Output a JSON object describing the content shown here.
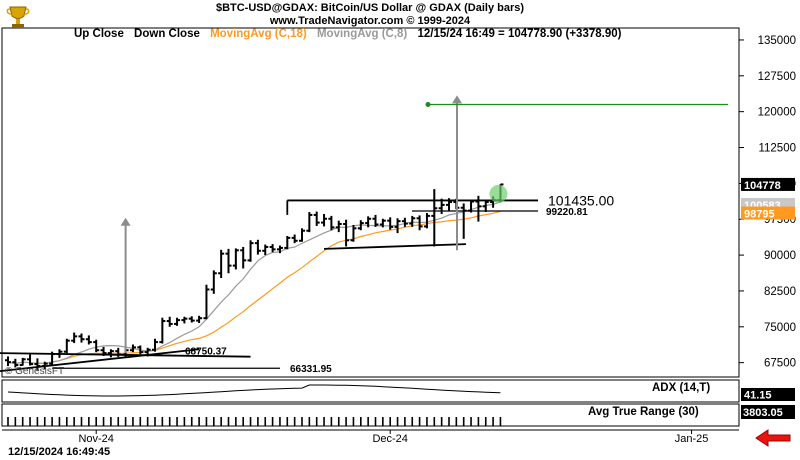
{
  "header": {
    "title": "$BTC-USD@GDAX:  BitCoin/US Dollar @ GDAX  (Daily bars)",
    "copyright": "www.TradeNavigator.com © 1999-2024"
  },
  "legend": {
    "up_close": "Up Close",
    "down_close": "Down Close",
    "ma18": "MovingAvg (C,18)",
    "ma8": "MovingAvg (C,8)",
    "quote": "12/15/24 16:49 = 104778.90 (+3378.90)",
    "ma18_color": "#ff9a1f",
    "ma8_color": "#9a9a9a"
  },
  "watermark": "© GenesisFT",
  "datetime": "12/15/2024 16:49:45",
  "panels": {
    "adx_label": "ADX (14,T)",
    "adx_value": "41.15",
    "atr_label": "Avg True Range (30)",
    "atr_value": "3803.05"
  },
  "chart_data": {
    "type": "bar",
    "title": "$BTC-USD@GDAX: BitCoin/US Dollar @ GDAX (Daily bars)",
    "x_ticks": [
      "Nov-24",
      "Dec-24",
      "Jan-25"
    ],
    "y_ticks": [
      67500,
      75000,
      82500,
      90000,
      97500,
      105000,
      112500,
      120000,
      127500,
      135000
    ],
    "ylim": [
      64500,
      137500
    ],
    "price_badges": [
      {
        "label": "104778",
        "value": 104778,
        "color": "#000000",
        "text_color": "#ffffff"
      },
      {
        "label": "100583",
        "value": 100583,
        "color": "#c8c8c8",
        "text_color": "#ffffff"
      },
      {
        "label": "98795",
        "value": 98795,
        "color": "#ff9a1f",
        "text_color": "#ffffff"
      }
    ],
    "levels": [
      {
        "label": "101435.00",
        "value": 101435
      },
      {
        "label": "99220.81",
        "value": 99220.81
      },
      {
        "label": "68750.37",
        "value": 68750.37
      },
      {
        "label": "66331.95",
        "value": 66331.95
      }
    ],
    "target_value": 121500,
    "bars": [
      {
        "o": 68000,
        "h": 68800,
        "l": 66800,
        "c": 67600
      },
      {
        "o": 67600,
        "h": 68300,
        "l": 66500,
        "c": 67000
      },
      {
        "o": 67000,
        "h": 68500,
        "l": 66900,
        "c": 68200
      },
      {
        "o": 68200,
        "h": 69200,
        "l": 66900,
        "c": 67200
      },
      {
        "o": 67200,
        "h": 68400,
        "l": 65900,
        "c": 66800
      },
      {
        "o": 66800,
        "h": 67700,
        "l": 66100,
        "c": 67300
      },
      {
        "o": 67300,
        "h": 69800,
        "l": 67000,
        "c": 69300
      },
      {
        "o": 69300,
        "h": 70300,
        "l": 68500,
        "c": 69800
      },
      {
        "o": 69800,
        "h": 72500,
        "l": 69500,
        "c": 72100
      },
      {
        "o": 72100,
        "h": 73800,
        "l": 71600,
        "c": 73000
      },
      {
        "o": 73000,
        "h": 73600,
        "l": 71700,
        "c": 72400
      },
      {
        "o": 72400,
        "h": 73200,
        "l": 71300,
        "c": 71800
      },
      {
        "o": 71800,
        "h": 72300,
        "l": 69700,
        "c": 70100
      },
      {
        "o": 70100,
        "h": 70800,
        "l": 68900,
        "c": 69500
      },
      {
        "o": 69500,
        "h": 70300,
        "l": 68600,
        "c": 69900
      },
      {
        "o": 69900,
        "h": 70600,
        "l": 68700,
        "c": 69200
      },
      {
        "o": 69200,
        "h": 70500,
        "l": 68800,
        "c": 70100
      },
      {
        "o": 70100,
        "h": 71300,
        "l": 69700,
        "c": 70700
      },
      {
        "o": 70700,
        "h": 71100,
        "l": 69300,
        "c": 69700
      },
      {
        "o": 69700,
        "h": 70600,
        "l": 68800,
        "c": 70200
      },
      {
        "o": 70200,
        "h": 72500,
        "l": 69800,
        "c": 71800
      },
      {
        "o": 71800,
        "h": 76900,
        "l": 71500,
        "c": 76200
      },
      {
        "o": 76200,
        "h": 77100,
        "l": 75000,
        "c": 75600
      },
      {
        "o": 75600,
        "h": 76900,
        "l": 75200,
        "c": 76400
      },
      {
        "o": 76400,
        "h": 77100,
        "l": 75700,
        "c": 76700
      },
      {
        "o": 76700,
        "h": 77200,
        "l": 75900,
        "c": 76300
      },
      {
        "o": 76300,
        "h": 77300,
        "l": 75800,
        "c": 76800
      },
      {
        "o": 76800,
        "h": 83800,
        "l": 76600,
        "c": 82800
      },
      {
        "o": 82800,
        "h": 86800,
        "l": 81900,
        "c": 86200
      },
      {
        "o": 86200,
        "h": 91100,
        "l": 85200,
        "c": 90300
      },
      {
        "o": 90300,
        "h": 91300,
        "l": 86200,
        "c": 87800
      },
      {
        "o": 87800,
        "h": 91400,
        "l": 87000,
        "c": 91000
      },
      {
        "o": 91000,
        "h": 91700,
        "l": 87200,
        "c": 88900
      },
      {
        "o": 88900,
        "h": 93100,
        "l": 88600,
        "c": 92500
      },
      {
        "o": 92500,
        "h": 93200,
        "l": 90100,
        "c": 90900
      },
      {
        "o": 90900,
        "h": 92200,
        "l": 90000,
        "c": 91700
      },
      {
        "o": 91700,
        "h": 92300,
        "l": 90600,
        "c": 91200
      },
      {
        "o": 91200,
        "h": 92000,
        "l": 90400,
        "c": 91500
      },
      {
        "o": 91500,
        "h": 94000,
        "l": 91200,
        "c": 93600
      },
      {
        "o": 93600,
        "h": 94300,
        "l": 92500,
        "c": 93000
      },
      {
        "o": 93000,
        "h": 95600,
        "l": 92800,
        "c": 95100
      },
      {
        "o": 95100,
        "h": 99000,
        "l": 94800,
        "c": 98400
      },
      {
        "o": 98400,
        "h": 99100,
        "l": 96100,
        "c": 96800
      },
      {
        "o": 96800,
        "h": 98600,
        "l": 96000,
        "c": 97600
      },
      {
        "o": 97600,
        "h": 98200,
        "l": 95200,
        "c": 95800
      },
      {
        "o": 95800,
        "h": 97200,
        "l": 94800,
        "c": 96500
      },
      {
        "o": 96500,
        "h": 97400,
        "l": 91800,
        "c": 93100
      },
      {
        "o": 93100,
        "h": 96300,
        "l": 92800,
        "c": 95600
      },
      {
        "o": 95600,
        "h": 97300,
        "l": 95200,
        "c": 96700
      },
      {
        "o": 96700,
        "h": 98100,
        "l": 95800,
        "c": 97600
      },
      {
        "o": 97600,
        "h": 98400,
        "l": 95900,
        "c": 96400
      },
      {
        "o": 96400,
        "h": 97600,
        "l": 95800,
        "c": 97200
      },
      {
        "o": 97200,
        "h": 97900,
        "l": 95300,
        "c": 95900
      },
      {
        "o": 95900,
        "h": 97700,
        "l": 94600,
        "c": 97100
      },
      {
        "o": 97100,
        "h": 97800,
        "l": 95900,
        "c": 96600
      },
      {
        "o": 96600,
        "h": 98200,
        "l": 95900,
        "c": 97700
      },
      {
        "o": 97700,
        "h": 98300,
        "l": 95200,
        "c": 96000
      },
      {
        "o": 96000,
        "h": 98800,
        "l": 95600,
        "c": 98200
      },
      {
        "o": 98200,
        "h": 103800,
        "l": 91800,
        "c": 99800
      },
      {
        "o": 99800,
        "h": 101800,
        "l": 98600,
        "c": 100500
      },
      {
        "o": 100500,
        "h": 101900,
        "l": 99200,
        "c": 101100
      },
      {
        "o": 101100,
        "h": 101800,
        "l": 99600,
        "c": 99900
      },
      {
        "o": 99900,
        "h": 100800,
        "l": 93400,
        "c": 99300
      },
      {
        "o": 99300,
        "h": 101600,
        "l": 98900,
        "c": 101200
      },
      {
        "o": 101200,
        "h": 102400,
        "l": 97000,
        "c": 100200
      },
      {
        "o": 100200,
        "h": 101600,
        "l": 99000,
        "c": 101100
      },
      {
        "o": 101100,
        "h": 102300,
        "l": 99900,
        "c": 101500
      },
      {
        "o": 101500,
        "h": 104800,
        "l": 101000,
        "c": 104778
      }
    ]
  }
}
